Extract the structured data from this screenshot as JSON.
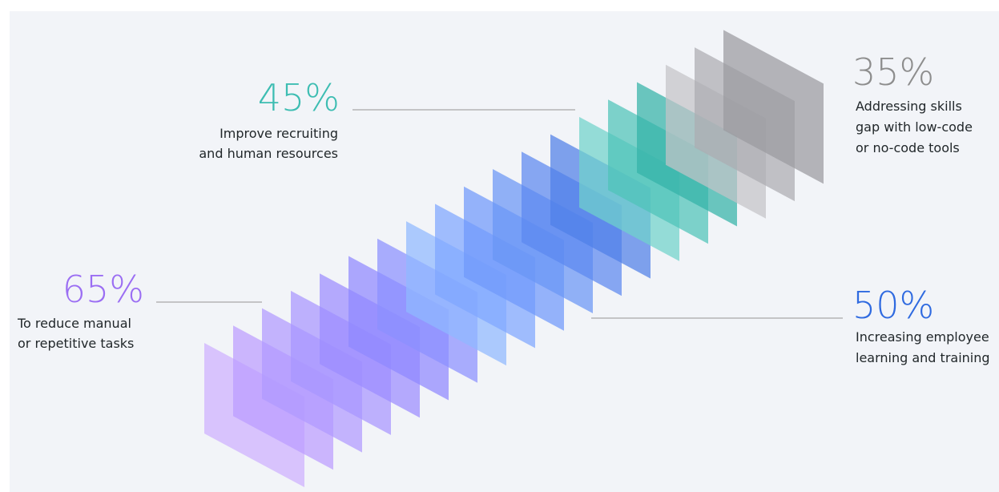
{
  "stats": [
    {
      "value": "45%",
      "lines": [
        "Improve recruiting",
        "and human resources"
      ]
    },
    {
      "value": "35%",
      "lines": [
        "Addressing skills",
        "gap with low-code",
        "or no-code tools"
      ]
    },
    {
      "value": "65%",
      "lines": [
        "To reduce manual",
        "or repetitive tasks"
      ]
    },
    {
      "value": "50%",
      "lines": [
        "Increasing employee",
        "learning and training"
      ]
    }
  ]
}
